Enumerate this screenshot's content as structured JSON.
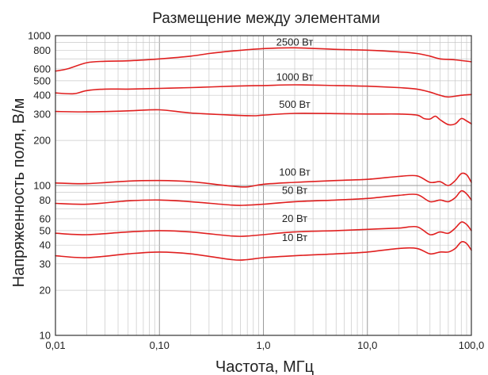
{
  "chart_data": {
    "type": "line",
    "title": "Размещение между элементами",
    "xlabel": "Частота, МГц",
    "ylabel": "Напряженность  поля, В/м",
    "xscale": "log",
    "yscale": "log",
    "xlim": [
      0.01,
      100
    ],
    "ylim": [
      10,
      1000
    ],
    "grid": true,
    "legend": "inline labels above curves",
    "xticks": [
      {
        "value": 0.01,
        "label": "0,01"
      },
      {
        "value": 0.1,
        "label": "0,10"
      },
      {
        "value": 1,
        "label": "1,0"
      },
      {
        "value": 10,
        "label": "10,0"
      },
      {
        "value": 100,
        "label": "100,0"
      }
    ],
    "yticks": [
      {
        "value": 10,
        "label": "10"
      },
      {
        "value": 20,
        "label": "20"
      },
      {
        "value": 30,
        "label": "30"
      },
      {
        "value": 40,
        "label": "40"
      },
      {
        "value": 50,
        "label": "50"
      },
      {
        "value": 60,
        "label": "60"
      },
      {
        "value": 80,
        "label": "80"
      },
      {
        "value": 100,
        "label": "100"
      },
      {
        "value": 200,
        "label": "200"
      },
      {
        "value": 300,
        "label": "300"
      },
      {
        "value": 400,
        "label": "400"
      },
      {
        "value": 500,
        "label": "500"
      },
      {
        "value": 600,
        "label": "600"
      },
      {
        "value": 800,
        "label": "800"
      },
      {
        "value": 1000,
        "label": "1000"
      }
    ],
    "series": [
      {
        "name": "2500 Вт",
        "color": "#e02020",
        "label_at": [
          2.0,
          830
        ],
        "points": [
          [
            0.01,
            580
          ],
          [
            0.013,
            600
          ],
          [
            0.02,
            660
          ],
          [
            0.03,
            675
          ],
          [
            0.05,
            680
          ],
          [
            0.1,
            700
          ],
          [
            0.2,
            730
          ],
          [
            0.3,
            760
          ],
          [
            0.5,
            790
          ],
          [
            1,
            820
          ],
          [
            2,
            830
          ],
          [
            5,
            810
          ],
          [
            10,
            800
          ],
          [
            20,
            780
          ],
          [
            30,
            760
          ],
          [
            40,
            730
          ],
          [
            50,
            700
          ],
          [
            70,
            690
          ],
          [
            100,
            670
          ]
        ]
      },
      {
        "name": "1000 Вт",
        "color": "#e02020",
        "label_at": [
          2.0,
          485
        ],
        "points": [
          [
            0.01,
            415
          ],
          [
            0.015,
            410
          ],
          [
            0.02,
            430
          ],
          [
            0.03,
            440
          ],
          [
            0.05,
            440
          ],
          [
            0.1,
            445
          ],
          [
            0.2,
            450
          ],
          [
            0.5,
            460
          ],
          [
            1,
            465
          ],
          [
            2,
            470
          ],
          [
            5,
            465
          ],
          [
            10,
            460
          ],
          [
            20,
            450
          ],
          [
            30,
            440
          ],
          [
            40,
            420
          ],
          [
            50,
            400
          ],
          [
            60,
            390
          ],
          [
            80,
            400
          ],
          [
            100,
            405
          ]
        ]
      },
      {
        "name": "500 Вт",
        "color": "#e02020",
        "label_at": [
          2.0,
          318
        ],
        "points": [
          [
            0.01,
            312
          ],
          [
            0.02,
            310
          ],
          [
            0.05,
            315
          ],
          [
            0.1,
            320
          ],
          [
            0.2,
            305
          ],
          [
            0.5,
            295
          ],
          [
            0.8,
            292
          ],
          [
            1,
            295
          ],
          [
            2,
            303
          ],
          [
            5,
            302
          ],
          [
            10,
            300
          ],
          [
            20,
            300
          ],
          [
            30,
            295
          ],
          [
            35,
            280
          ],
          [
            40,
            278
          ],
          [
            45,
            290
          ],
          [
            50,
            275
          ],
          [
            60,
            255
          ],
          [
            70,
            258
          ],
          [
            80,
            280
          ],
          [
            90,
            270
          ],
          [
            100,
            258
          ]
        ]
      },
      {
        "name": "100 Вт",
        "color": "#e02020",
        "label_at": [
          2.0,
          112
        ],
        "points": [
          [
            0.01,
            104
          ],
          [
            0.02,
            103
          ],
          [
            0.05,
            107
          ],
          [
            0.1,
            108
          ],
          [
            0.2,
            106
          ],
          [
            0.5,
            99
          ],
          [
            0.7,
            98
          ],
          [
            1,
            102
          ],
          [
            2,
            105
          ],
          [
            5,
            108
          ],
          [
            10,
            110
          ],
          [
            20,
            115
          ],
          [
            30,
            116
          ],
          [
            40,
            105
          ],
          [
            50,
            106
          ],
          [
            60,
            100
          ],
          [
            70,
            108
          ],
          [
            80,
            120
          ],
          [
            90,
            118
          ],
          [
            100,
            105
          ]
        ]
      },
      {
        "name": "50 Вт",
        "color": "#e02020",
        "label_at": [
          2.0,
          85
        ],
        "points": [
          [
            0.01,
            76
          ],
          [
            0.02,
            75
          ],
          [
            0.05,
            79
          ],
          [
            0.1,
            80
          ],
          [
            0.2,
            78
          ],
          [
            0.5,
            74
          ],
          [
            0.7,
            74
          ],
          [
            1,
            75
          ],
          [
            2,
            78
          ],
          [
            5,
            80
          ],
          [
            10,
            82
          ],
          [
            20,
            86
          ],
          [
            30,
            87
          ],
          [
            40,
            78
          ],
          [
            50,
            80
          ],
          [
            60,
            78
          ],
          [
            70,
            83
          ],
          [
            80,
            92
          ],
          [
            90,
            88
          ],
          [
            100,
            80
          ]
        ]
      },
      {
        "name": "20 Вт",
        "color": "#e02020",
        "label_at": [
          2.0,
          55
        ],
        "points": [
          [
            0.01,
            48
          ],
          [
            0.02,
            47
          ],
          [
            0.05,
            49
          ],
          [
            0.1,
            50
          ],
          [
            0.2,
            49
          ],
          [
            0.5,
            46
          ],
          [
            0.7,
            46
          ],
          [
            1,
            47
          ],
          [
            2,
            49
          ],
          [
            5,
            50
          ],
          [
            10,
            51
          ],
          [
            20,
            52
          ],
          [
            30,
            53
          ],
          [
            40,
            47
          ],
          [
            50,
            49
          ],
          [
            60,
            48
          ],
          [
            70,
            52
          ],
          [
            80,
            57
          ],
          [
            90,
            55
          ],
          [
            100,
            50
          ]
        ]
      },
      {
        "name": "10 Вт",
        "color": "#e02020",
        "label_at": [
          2.0,
          41
        ],
        "points": [
          [
            0.01,
            34
          ],
          [
            0.02,
            33
          ],
          [
            0.05,
            35
          ],
          [
            0.1,
            36
          ],
          [
            0.2,
            35
          ],
          [
            0.5,
            32
          ],
          [
            0.7,
            32
          ],
          [
            1,
            33
          ],
          [
            2,
            34
          ],
          [
            5,
            35
          ],
          [
            10,
            36
          ],
          [
            20,
            38
          ],
          [
            30,
            38
          ],
          [
            40,
            35
          ],
          [
            50,
            36
          ],
          [
            60,
            36
          ],
          [
            70,
            38
          ],
          [
            80,
            42
          ],
          [
            90,
            41
          ],
          [
            100,
            37
          ]
        ]
      }
    ]
  }
}
